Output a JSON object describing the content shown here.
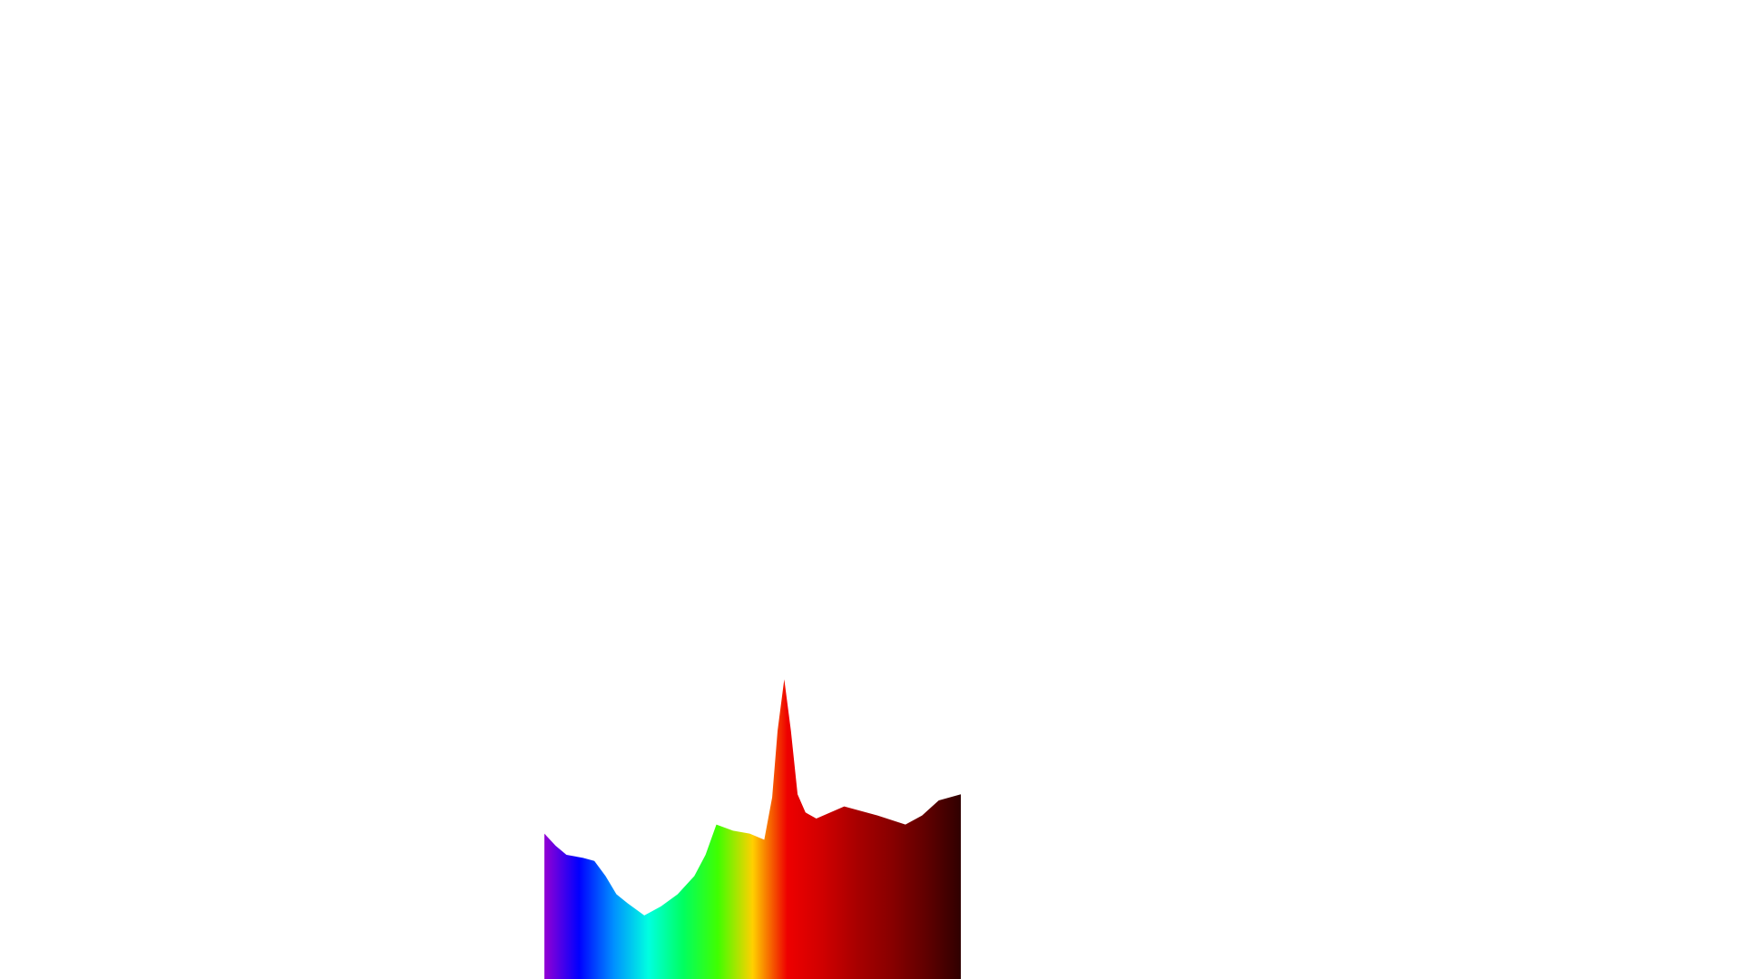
{
  "chart_data": {
    "type": "area",
    "x": [
      0,
      2.7,
      5.3,
      9.3,
      12,
      14.7,
      17.3,
      20,
      24,
      28,
      32,
      36,
      38.7,
      41.3,
      45.3,
      49.3,
      52.8,
      54.7,
      56,
      57.6,
      59.2,
      60.8,
      62.7,
      65.3,
      72,
      80,
      86.7,
      90.7,
      94.7,
      100
    ],
    "values": [
      48,
      44,
      41,
      40,
      39,
      34,
      28,
      25,
      21,
      24,
      28,
      34,
      41,
      51,
      49,
      48,
      46,
      60,
      82,
      99,
      82,
      61,
      55,
      53,
      57,
      54,
      51,
      54,
      59,
      61
    ],
    "xlim": [
      0,
      100
    ],
    "ylim": [
      0,
      100
    ],
    "colors": [
      "#9400d3",
      "#0000ff",
      "#0090ff",
      "#00ffe0",
      "#00ff60",
      "#40ff00",
      "#ffd000",
      "#ee0000",
      "#d00000",
      "#a80000",
      "#880000",
      "#600000",
      "#300000"
    ]
  }
}
